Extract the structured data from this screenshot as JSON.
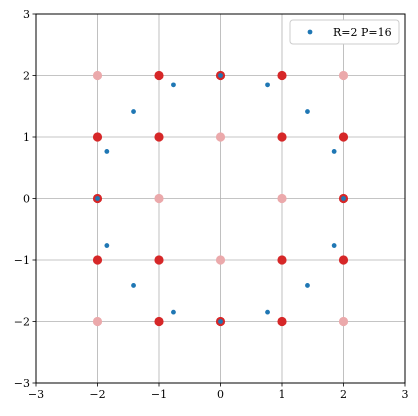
{
  "chart_data": {
    "type": "scatter",
    "xlim": [
      -3,
      3
    ],
    "ylim": [
      -3,
      3
    ],
    "x_ticks": [
      -3,
      -2,
      -1,
      0,
      1,
      2,
      3
    ],
    "y_ticks": [
      -3,
      -2,
      -1,
      0,
      1,
      2,
      3
    ],
    "x_tick_labels": [
      "−3",
      "−2",
      "−1",
      "0",
      "1",
      "2",
      "3"
    ],
    "y_tick_labels": [
      "−3",
      "−2",
      "−1",
      "0",
      "1",
      "2",
      "3"
    ],
    "grid": true,
    "legend_position": "top-right",
    "series": [
      {
        "name": "R=2 P=16",
        "color": "#1f77b4",
        "marker": "dot",
        "points": [
          [
            2.0,
            0.0
          ],
          [
            1.848,
            0.765
          ],
          [
            1.414,
            1.414
          ],
          [
            0.765,
            1.848
          ],
          [
            0.0,
            2.0
          ],
          [
            -0.765,
            1.848
          ],
          [
            -1.414,
            1.414
          ],
          [
            -1.848,
            0.765
          ],
          [
            -2.0,
            0.0
          ],
          [
            -1.848,
            -0.765
          ],
          [
            -1.414,
            -1.414
          ],
          [
            -0.765,
            -1.848
          ],
          [
            0.0,
            -2.0
          ],
          [
            0.765,
            -1.848
          ],
          [
            1.414,
            -1.414
          ],
          [
            1.848,
            -0.765
          ]
        ]
      },
      {
        "color": "#d62728",
        "marker": "circle",
        "points": [
          [
            -2,
            1
          ],
          [
            -2,
            0
          ],
          [
            -2,
            -1
          ],
          [
            -1,
            2
          ],
          [
            -1,
            1
          ],
          [
            -1,
            -1
          ],
          [
            -1,
            -2
          ],
          [
            0,
            2
          ],
          [
            0,
            -2
          ],
          [
            1,
            2
          ],
          [
            1,
            1
          ],
          [
            1,
            -1
          ],
          [
            1,
            -2
          ],
          [
            2,
            1
          ],
          [
            2,
            0
          ],
          [
            2,
            -1
          ]
        ]
      },
      {
        "color": "#eba9ab",
        "marker": "circle",
        "points": [
          [
            -2,
            2
          ],
          [
            2,
            2
          ],
          [
            -2,
            -2
          ],
          [
            2,
            -2
          ],
          [
            -1,
            0
          ],
          [
            1,
            0
          ],
          [
            0,
            1
          ],
          [
            0,
            -1
          ]
        ]
      }
    ]
  }
}
